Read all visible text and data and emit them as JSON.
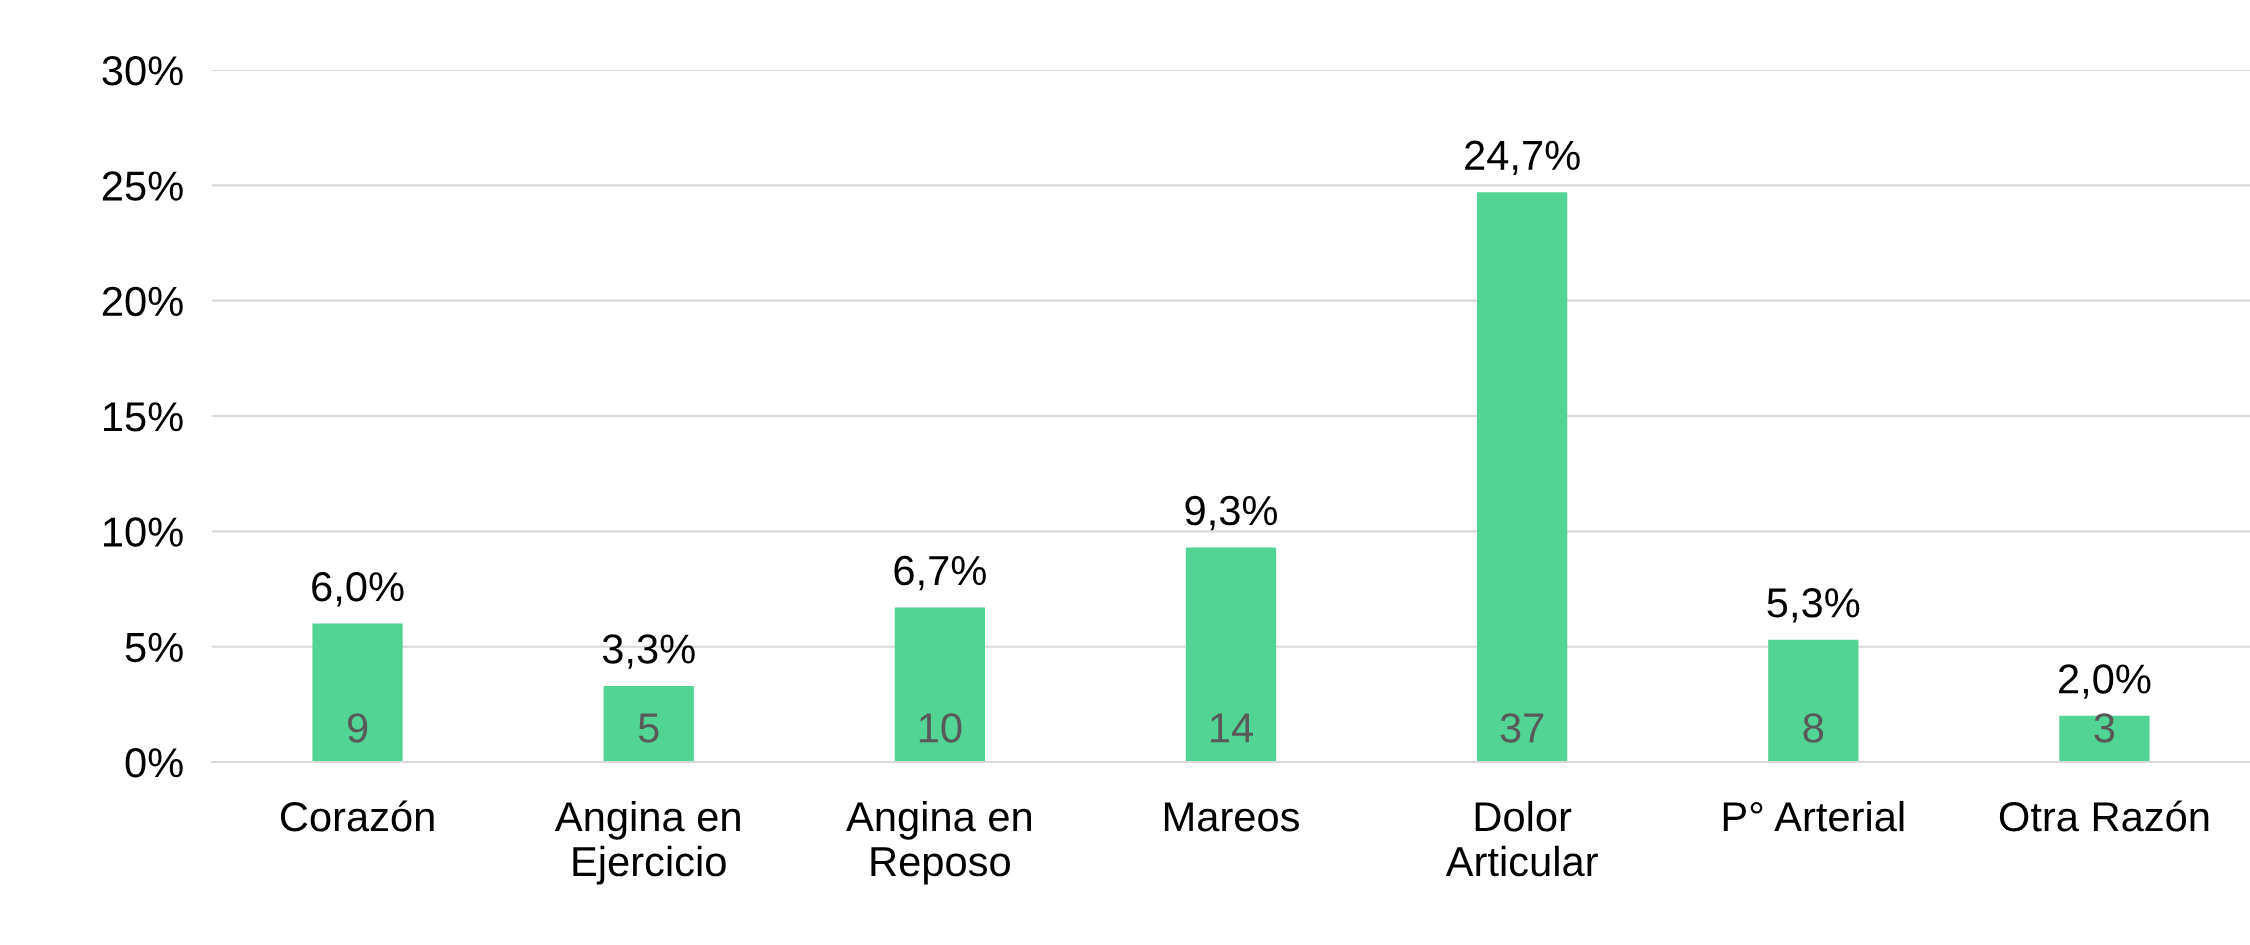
{
  "chart_data": {
    "type": "bar",
    "categories": [
      "Corazón",
      "Angina en\nEjercicio",
      "Angina en\nReposo",
      "Mareos",
      "Dolor\nArticular",
      "P° Arterial",
      "Otra Razón"
    ],
    "values": [
      6.0,
      3.3,
      6.7,
      9.3,
      24.7,
      5.3,
      2.0
    ],
    "value_labels": [
      "6,0%",
      "3,3%",
      "6,7%",
      "9,3%",
      "24,7%",
      "5,3%",
      "2,0%"
    ],
    "color": "#52d494",
    "ylim": [
      0,
      30
    ],
    "yticks": [
      {
        "value": 0,
        "label": "0%"
      },
      {
        "value": 5,
        "label": "5%"
      },
      {
        "value": 10,
        "label": "10%"
      },
      {
        "value": 15,
        "label": "15%"
      },
      {
        "value": 20,
        "label": "20%"
      },
      {
        "value": 25,
        "label": "25%"
      },
      {
        "value": 30,
        "label": "30%"
      }
    ],
    "grid": "y",
    "annotations": [
      "9",
      "5",
      "10",
      "14",
      "37",
      "8",
      "3"
    ]
  }
}
